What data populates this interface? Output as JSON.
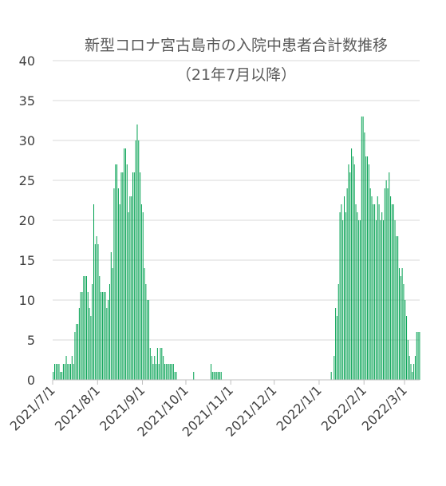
{
  "chart_data": {
    "type": "bar",
    "title": "新型コロナ宮古島市の入院中患者合計数推移",
    "subtitle": "（21年7月以降）",
    "xlabel": "",
    "ylabel": "",
    "ylim": [
      0,
      40
    ],
    "yticks": [
      "0",
      "5",
      "10",
      "15",
      "20",
      "25",
      "30",
      "35",
      "40"
    ],
    "grid": true,
    "legend": "none",
    "colors": {
      "bar": "#00a050"
    },
    "start_date": "2021/7/1",
    "xtick_labels": [
      "2021/7/1",
      "2021/8/1",
      "2021/9/1",
      "2021/10/1",
      "2021/11/1",
      "2021/12/1",
      "2022/1/1",
      "2022/2/1",
      "2022/3/1"
    ],
    "values": [
      1,
      2,
      2,
      2,
      2,
      1,
      1,
      2,
      2,
      3,
      2,
      2,
      2,
      3,
      2,
      6,
      7,
      7,
      9,
      11,
      11,
      13,
      13,
      13,
      11,
      9,
      8,
      12,
      22,
      17,
      18,
      17,
      13,
      11,
      11,
      11,
      11,
      9,
      10,
      12,
      16,
      14,
      24,
      27,
      27,
      24,
      22,
      26,
      26,
      29,
      29,
      27,
      21,
      23,
      23,
      26,
      26,
      30,
      32,
      30,
      26,
      22,
      21,
      14,
      12,
      10,
      10,
      4,
      3,
      2,
      3,
      2,
      4,
      2,
      4,
      4,
      3,
      2,
      2,
      2,
      2,
      2,
      2,
      2,
      1,
      1,
      0,
      0,
      0,
      0,
      0,
      0,
      0,
      0,
      0,
      0,
      0,
      1,
      0,
      0,
      0,
      0,
      0,
      0,
      0,
      0,
      0,
      0,
      0,
      2,
      1,
      1,
      1,
      1,
      1,
      1,
      1,
      0,
      0,
      0,
      0,
      0,
      0,
      0,
      0,
      0,
      0,
      0,
      0,
      0,
      0,
      0,
      0,
      0,
      0,
      0,
      0,
      0,
      0,
      0,
      0,
      0,
      0,
      0,
      0,
      0,
      0,
      0,
      0,
      0,
      0,
      0,
      0,
      0,
      0,
      0,
      0,
      0,
      0,
      0,
      0,
      0,
      0,
      0,
      0,
      0,
      0,
      0,
      0,
      0,
      0,
      0,
      0,
      0,
      0,
      0,
      0,
      0,
      0,
      0,
      0,
      0,
      0,
      0,
      0,
      0,
      0,
      0,
      0,
      0,
      0,
      0,
      1,
      0,
      3,
      9,
      8,
      12,
      21,
      22,
      20,
      23,
      21,
      24,
      27,
      26,
      29,
      28,
      27,
      22,
      21,
      20,
      20,
      33,
      33,
      31,
      28,
      28,
      27,
      24,
      23,
      22,
      22,
      20,
      23,
      22,
      20,
      21,
      20,
      24,
      25,
      24,
      26,
      23,
      22,
      22,
      20,
      18,
      18,
      14,
      13,
      14,
      12,
      10,
      8,
      5,
      3,
      2,
      1,
      2,
      3,
      6,
      6,
      6
    ]
  }
}
